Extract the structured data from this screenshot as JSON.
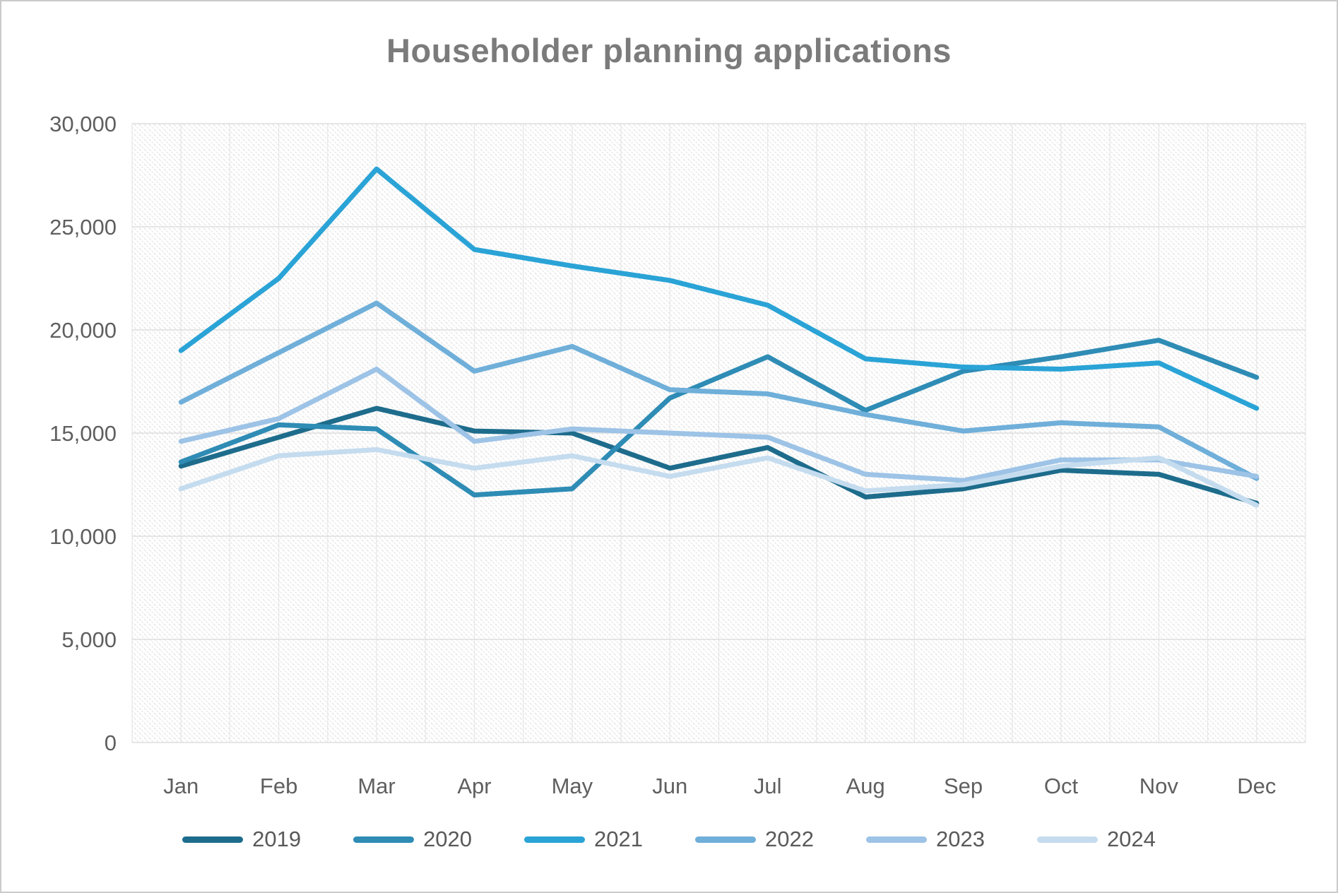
{
  "title": "Householder planning applications",
  "chart_data": {
    "type": "line",
    "title": "Householder planning applications",
    "categories": [
      "Jan",
      "Feb",
      "Mar",
      "Apr",
      "May",
      "Jun",
      "Jul",
      "Aug",
      "Sep",
      "Oct",
      "Nov",
      "Dec"
    ],
    "series": [
      {
        "name": "2019",
        "color": "#1E6C8C",
        "values": [
          13400,
          14800,
          16200,
          15100,
          15000,
          13300,
          14300,
          11900,
          12300,
          13200,
          13000,
          11600
        ]
      },
      {
        "name": "2020",
        "color": "#2E8CB5",
        "values": [
          13600,
          15400,
          15200,
          12000,
          12300,
          16700,
          18700,
          16100,
          18000,
          18700,
          19500,
          17700
        ]
      },
      {
        "name": "2021",
        "color": "#2AA3D6",
        "values": [
          19000,
          22500,
          27800,
          23900,
          23100,
          22400,
          21200,
          18600,
          18200,
          18100,
          18400,
          16200
        ]
      },
      {
        "name": "2022",
        "color": "#6FAFD9",
        "values": [
          16500,
          18900,
          21300,
          18000,
          19200,
          17100,
          16900,
          15900,
          15100,
          15500,
          15300,
          12800
        ]
      },
      {
        "name": "2023",
        "color": "#9DC3E6",
        "values": [
          14600,
          15700,
          18100,
          14600,
          15200,
          15000,
          14800,
          13000,
          12700,
          13700,
          13700,
          12900
        ]
      },
      {
        "name": "2024",
        "color": "#C5DCEF",
        "values": [
          12300,
          13900,
          14200,
          13300,
          13900,
          12900,
          13800,
          12200,
          12500,
          13400,
          13800,
          11500
        ]
      }
    ],
    "xlabel": "",
    "ylabel": "",
    "ylim": [
      0,
      30000
    ],
    "ytick_step": 5000,
    "ytick_labels": [
      "0",
      "5,000",
      "10,000",
      "15,000",
      "20,000",
      "25,000",
      "30,000"
    ],
    "grid": true,
    "plot_background": "light diagonal hatch",
    "legend_position": "bottom"
  }
}
